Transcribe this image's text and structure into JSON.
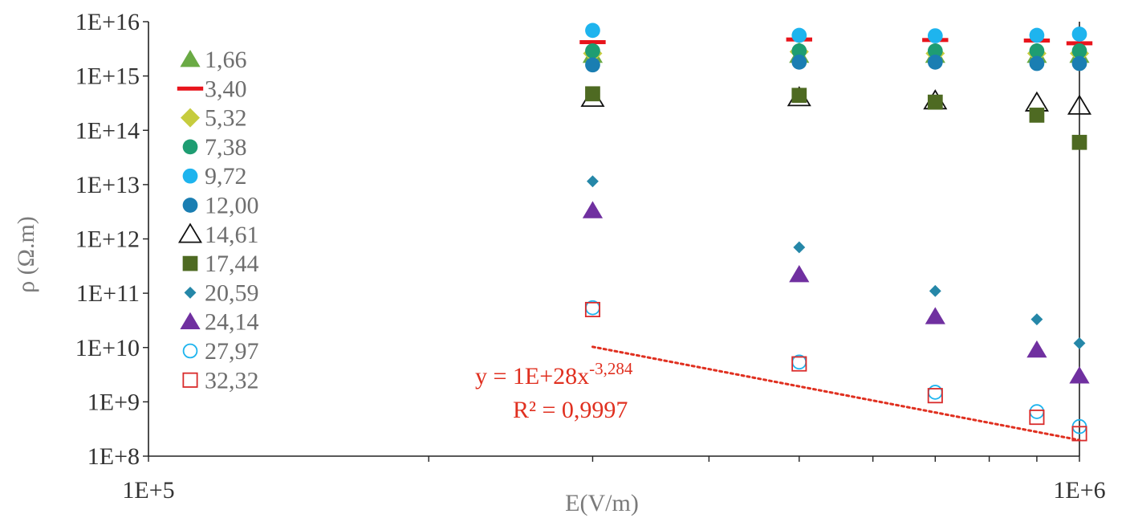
{
  "chart_data": {
    "type": "scatter",
    "title": "",
    "xlabel": "E(V/m)",
    "ylabel": "ρ (Ω.m)",
    "x_scale": "log",
    "y_scale": "log",
    "xlim": [
      100000,
      1000000
    ],
    "ylim": [
      100000000,
      10000000000000000
    ],
    "x_ticks": [
      {
        "value": 100000,
        "label": "1E+5"
      },
      {
        "value": 1000000,
        "label": "1E+6"
      }
    ],
    "y_ticks": [
      {
        "value": 100000000,
        "label": "1E+8"
      },
      {
        "value": 1000000000,
        "label": "1E+9"
      },
      {
        "value": 10000000000,
        "label": "1E+10"
      },
      {
        "value": 100000000000,
        "label": "1E+11"
      },
      {
        "value": 1000000000000,
        "label": "1E+12"
      },
      {
        "value": 10000000000000,
        "label": "1E+13"
      },
      {
        "value": 100000000000000,
        "label": "1E+14"
      },
      {
        "value": 1000000000000000,
        "label": "1E+15"
      },
      {
        "value": 10000000000000000,
        "label": "1E+16"
      }
    ],
    "grid": false,
    "legend_position": "left",
    "x": [
      300000,
      500000,
      700000,
      900000,
      1000000
    ],
    "series": [
      {
        "name": "1,66",
        "marker": "triangle",
        "color": "#6aaa44",
        "values": [
          2400000000000000.0,
          2400000000000000.0,
          2400000000000000.0,
          2400000000000000.0,
          2400000000000000.0
        ]
      },
      {
        "name": "3,40",
        "marker": "dash",
        "color": "#e8141c",
        "values": [
          4200000000000000.0,
          4700000000000000.0,
          4600000000000000.0,
          4500000000000000.0,
          4000000000000000.0
        ]
      },
      {
        "name": "5,32",
        "marker": "diamond",
        "color": "#c6cc3e",
        "values": [
          2600000000000000.0,
          2800000000000000.0,
          2600000000000000.0,
          2600000000000000.0,
          2600000000000000.0
        ]
      },
      {
        "name": "7,38",
        "marker": "circle",
        "color": "#1e9d72",
        "values": [
          2900000000000000.0,
          2900000000000000.0,
          2900000000000000.0,
          2900000000000000.0,
          2900000000000000.0
        ]
      },
      {
        "name": "9,72",
        "marker": "circle",
        "color": "#1eb4ee",
        "values": [
          6900000000000000.0,
          5600000000000000.0,
          5500000000000000.0,
          5600000000000000.0,
          5900000000000000.0
        ]
      },
      {
        "name": "12,00",
        "marker": "circle",
        "color": "#1a7eb2",
        "values": [
          1600000000000000.0,
          1800000000000000.0,
          1800000000000000.0,
          1700000000000000.0,
          1700000000000000.0
        ]
      },
      {
        "name": "14,61",
        "marker": "triangle-open",
        "color": "#111111",
        "values": [
          390000000000000.0,
          400000000000000.0,
          350000000000000.0,
          320000000000000.0,
          280000000000000.0
        ]
      },
      {
        "name": "17,44",
        "marker": "square",
        "color": "#4e6a22",
        "values": [
          470000000000000.0,
          440000000000000.0,
          330000000000000.0,
          190000000000000.0,
          60000000000000.0
        ]
      },
      {
        "name": "20,59",
        "marker": "diamond-small",
        "color": "#2587a8",
        "values": [
          11500000000000.0,
          700000000000.0,
          110000000000.0,
          33000000000.0,
          12000000000.0
        ]
      },
      {
        "name": "24,14",
        "marker": "triangle",
        "color": "#7030a0",
        "values": [
          3300000000000.0,
          220000000000.0,
          37000000000.0,
          9000000000.0,
          3000000000.0
        ]
      },
      {
        "name": "27,97",
        "marker": "circle-open",
        "color": "#1eb4ee",
        "values": [
          54000000000.0,
          5400000000.0,
          1500000000.0,
          660000000.0,
          350000000.0
        ]
      },
      {
        "name": "32,32",
        "marker": "square-open",
        "color": "#d92b2b",
        "values": [
          50000000000.0,
          5000000000.0,
          1300000000.0,
          520000000.0,
          260000000.0
        ]
      }
    ],
    "trendline": {
      "type": "power",
      "color": "#e03020",
      "x_range": [
        300000,
        1000000
      ],
      "coefficient": 1e+28,
      "exponent": -3.284,
      "equation_text": "y = 1E+28x",
      "exponent_text": "-3,284",
      "r2_text": "R² = 0,9997"
    }
  }
}
